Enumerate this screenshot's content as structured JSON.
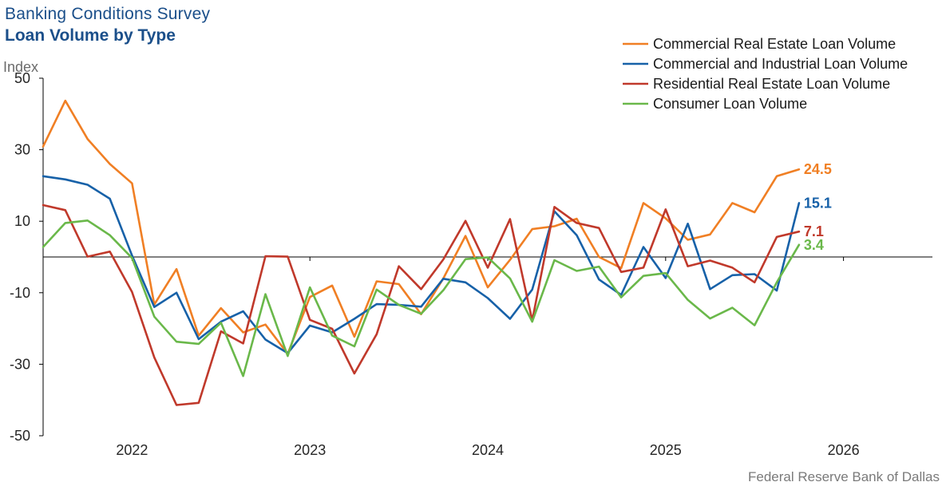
{
  "header": {
    "title": "Banking Conditions Survey",
    "subtitle": "Loan Volume by Type"
  },
  "footer": {
    "source": "Federal Reserve Bank of Dallas"
  },
  "chart_data": {
    "type": "line",
    "ylabel": "Index",
    "ylim": [
      -50,
      50
    ],
    "yticks": [
      -50,
      -30,
      -10,
      10,
      30,
      50
    ],
    "xticks": [
      "2022",
      "2023",
      "2024",
      "2025",
      "2026"
    ],
    "x_range": [
      2021.5,
      2026.5
    ],
    "grid": false,
    "legend_position": "top-right",
    "x": [
      2021.5,
      2021.625,
      2021.75,
      2021.875,
      2022.0,
      2022.125,
      2022.25,
      2022.375,
      2022.5,
      2022.625,
      2022.75,
      2022.875,
      2023.0,
      2023.125,
      2023.25,
      2023.375,
      2023.5,
      2023.625,
      2023.75,
      2023.875,
      2024.0,
      2024.125,
      2024.25,
      2024.375,
      2024.5,
      2024.625,
      2024.75,
      2024.875,
      2025.0,
      2025.125,
      2025.25,
      2025.375,
      2025.5,
      2025.625,
      2025.75
    ],
    "series": [
      {
        "name": "Commercial Real Estate Loan Volume",
        "color": "#f07f24",
        "end_label": "24.5",
        "values": [
          30.9,
          43.7,
          33.0,
          26.0,
          20.6,
          -13.3,
          -3.4,
          -22.0,
          -14.3,
          -21.1,
          -18.9,
          -27.1,
          -11.2,
          -8.0,
          -22.3,
          -6.8,
          -7.6,
          -16.0,
          -6.0,
          5.9,
          -8.5,
          -0.8,
          7.8,
          8.6,
          10.7,
          0.0,
          -3.1,
          15.1,
          10.8,
          4.8,
          6.3,
          15.1,
          12.5,
          22.6,
          24.5
        ]
      },
      {
        "name": "Commercial and Industrial Loan Volume",
        "color": "#1761a8",
        "end_label": "15.1",
        "values": [
          22.6,
          21.7,
          20.2,
          16.3,
          0.4,
          -14.0,
          -10.0,
          -23.0,
          -18.1,
          -15.2,
          -23.1,
          -26.9,
          -19.2,
          -21.1,
          -17.3,
          -13.2,
          -13.4,
          -13.9,
          -6.1,
          -7.1,
          -11.5,
          -17.3,
          -9.1,
          12.8,
          6.1,
          -6.3,
          -10.6,
          2.8,
          -5.9,
          9.3,
          -9.0,
          -5.1,
          -4.8,
          -9.4,
          15.1
        ]
      },
      {
        "name": "Residential Real Estate Loan Volume",
        "color": "#c0392b",
        "end_label": "7.1",
        "values": [
          14.5,
          13.1,
          0.1,
          1.5,
          -9.8,
          -28.1,
          -41.4,
          -40.8,
          -20.8,
          -24.2,
          0.2,
          0.1,
          -17.6,
          -20.1,
          -32.6,
          -21.6,
          -2.6,
          -9.0,
          -0.7,
          10.1,
          -3.0,
          10.6,
          -17.8,
          14.0,
          9.5,
          8.1,
          -4.2,
          -3.0,
          13.3,
          -2.6,
          -1.0,
          -3.0,
          -7.1,
          5.6,
          7.1
        ]
      },
      {
        "name": "Consumer Loan Volume",
        "color": "#6ab84a",
        "end_label": "3.4",
        "values": [
          2.8,
          9.5,
          10.2,
          6.1,
          -0.3,
          -16.7,
          -23.7,
          -24.3,
          -18.4,
          -33.3,
          -10.4,
          -27.7,
          -8.5,
          -22.0,
          -25.0,
          -9.1,
          -13.4,
          -15.9,
          -9.3,
          -0.6,
          -0.1,
          -6.0,
          -18.1,
          -0.9,
          -3.9,
          -2.7,
          -11.3,
          -5.3,
          -4.5,
          -12.0,
          -17.2,
          -14.2,
          -19.1,
          -7.1,
          3.4
        ]
      }
    ]
  }
}
